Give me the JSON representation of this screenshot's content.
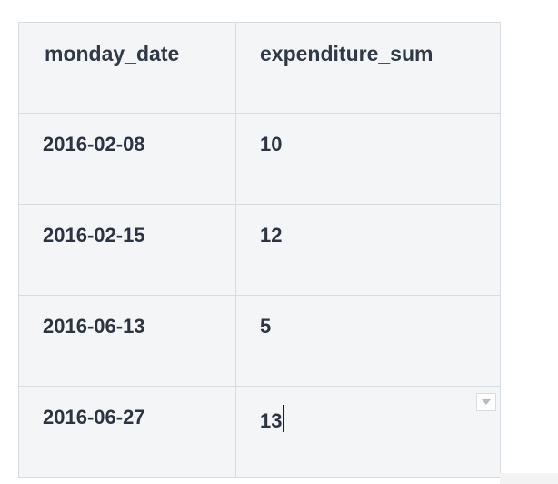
{
  "table": {
    "columns": [
      "monday_date",
      "expenditure_sum"
    ],
    "rows": [
      {
        "monday_date": "2016-02-08",
        "expenditure_sum": "10"
      },
      {
        "monday_date": "2016-02-15",
        "expenditure_sum": "12"
      },
      {
        "monday_date": "2016-06-13",
        "expenditure_sum": "5"
      },
      {
        "monday_date": "2016-06-27",
        "expenditure_sum": "13"
      }
    ],
    "active_cell": {
      "row": 3,
      "column": "expenditure_sum"
    }
  },
  "colors": {
    "cell_background": "#f4f5f7",
    "border": "#d8dbe0",
    "text": "#2b3440"
  },
  "icons": {
    "cell_dropdown": "chevron-down-icon"
  }
}
